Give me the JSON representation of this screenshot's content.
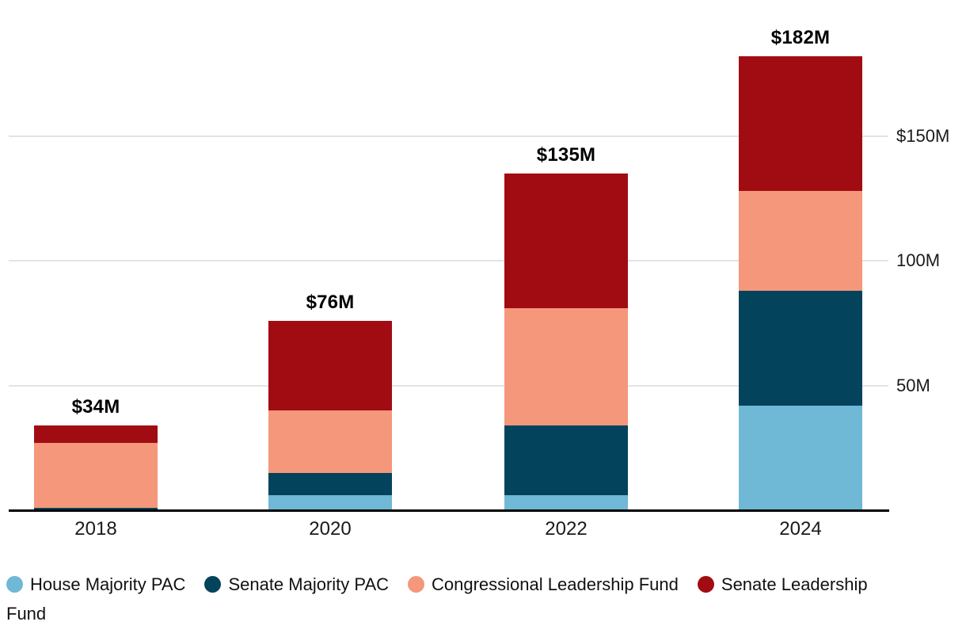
{
  "chart_data": {
    "type": "bar",
    "stacked": true,
    "title": "",
    "categories": [
      "2018",
      "2020",
      "2022",
      "2024"
    ],
    "series": [
      {
        "name": "House Majority PAC",
        "color": "#6fb8d6",
        "values": [
          0.3,
          6,
          6,
          42
        ]
      },
      {
        "name": "Senate Majority PAC",
        "color": "#03435c",
        "values": [
          0.7,
          9,
          28,
          46
        ]
      },
      {
        "name": "Congressional Leadership Fund",
        "color": "#f4977a",
        "values": [
          26,
          25,
          47,
          40
        ]
      },
      {
        "name": "Senate Leadership Fund",
        "color": "#a10c12",
        "values": [
          7,
          36,
          54,
          54
        ]
      }
    ],
    "totals": [
      34,
      76,
      135,
      182
    ],
    "total_labels": [
      "$34M",
      "$76M",
      "$135M",
      "$182M"
    ],
    "xlabel": "",
    "ylabel": "",
    "y_axis": {
      "side": "right",
      "max": 182,
      "gridlines": true,
      "ticks": [
        {
          "value": 150,
          "label": "$150M"
        },
        {
          "value": 100,
          "label": "100M"
        },
        {
          "value": 50,
          "label": "50M"
        }
      ]
    },
    "legend": {
      "position": "bottom",
      "wrap_last_word": true,
      "items": [
        {
          "label": "House Majority PAC",
          "color": "#6fb8d6"
        },
        {
          "label": "Senate Majority PAC",
          "color": "#03435c"
        },
        {
          "label": "Congressional Leadership Fund",
          "color": "#f4977a"
        },
        {
          "label": "Senate Leadership Fund",
          "color": "#a10c12"
        }
      ]
    },
    "colors": {
      "axis": "#000000",
      "gridline": "#e4e4e4",
      "text": "#1a1a1a"
    }
  }
}
